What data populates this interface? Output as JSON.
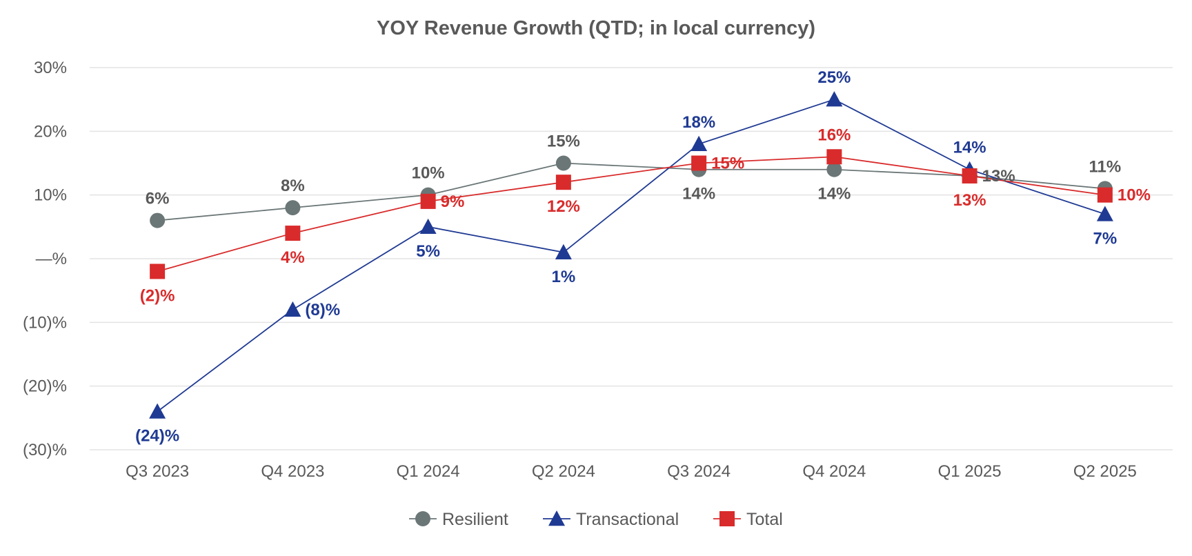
{
  "chart_data": {
    "type": "line",
    "title": "YOY Revenue Growth (QTD; in local currency)",
    "xlabel": "",
    "ylabel": "",
    "categories": [
      "Q3 2023",
      "Q4 2023",
      "Q1 2024",
      "Q2 2024",
      "Q3 2024",
      "Q4 2024",
      "Q1 2025",
      "Q2 2025"
    ],
    "ylim": [
      -30,
      30
    ],
    "yticks": [
      30,
      20,
      10,
      0,
      -10,
      -20,
      -30
    ],
    "ytick_labels": [
      "30%",
      "20%",
      "10%",
      "—%",
      "(10)%",
      "(20)%",
      "(30)%"
    ],
    "grid": true,
    "legend_position": "bottom-center",
    "series": [
      {
        "name": "Resilient",
        "marker": "circle",
        "color": "#6b7677",
        "values": [
          6,
          8,
          10,
          15,
          14,
          14,
          13,
          11
        ],
        "labels": [
          "6%",
          "8%",
          "10%",
          "15%",
          "14%",
          "14%",
          "13%",
          "11%"
        ],
        "label_placement": [
          "above",
          "above",
          "above",
          "above",
          "below",
          "below",
          "right",
          "above"
        ]
      },
      {
        "name": "Transactional",
        "marker": "triangle",
        "color": "#1f3a93",
        "values": [
          -24,
          -8,
          5,
          1,
          18,
          25,
          14,
          7
        ],
        "labels": [
          "(24)%",
          "(8)%",
          "5%",
          "1%",
          "18%",
          "25%",
          "14%",
          "7%"
        ],
        "label_placement": [
          "below",
          "right",
          "below",
          "below",
          "above",
          "above",
          "above",
          "below"
        ]
      },
      {
        "name": "Total",
        "marker": "square",
        "color": "#d92b2b",
        "values": [
          -2,
          4,
          9,
          12,
          15,
          16,
          13,
          10
        ],
        "labels": [
          "(2)%",
          "4%",
          "9%",
          "12%",
          "15%",
          "16%",
          "13%",
          "10%"
        ],
        "label_placement": [
          "below",
          "below",
          "right",
          "below",
          "right",
          "above",
          "below",
          "right"
        ]
      }
    ]
  }
}
